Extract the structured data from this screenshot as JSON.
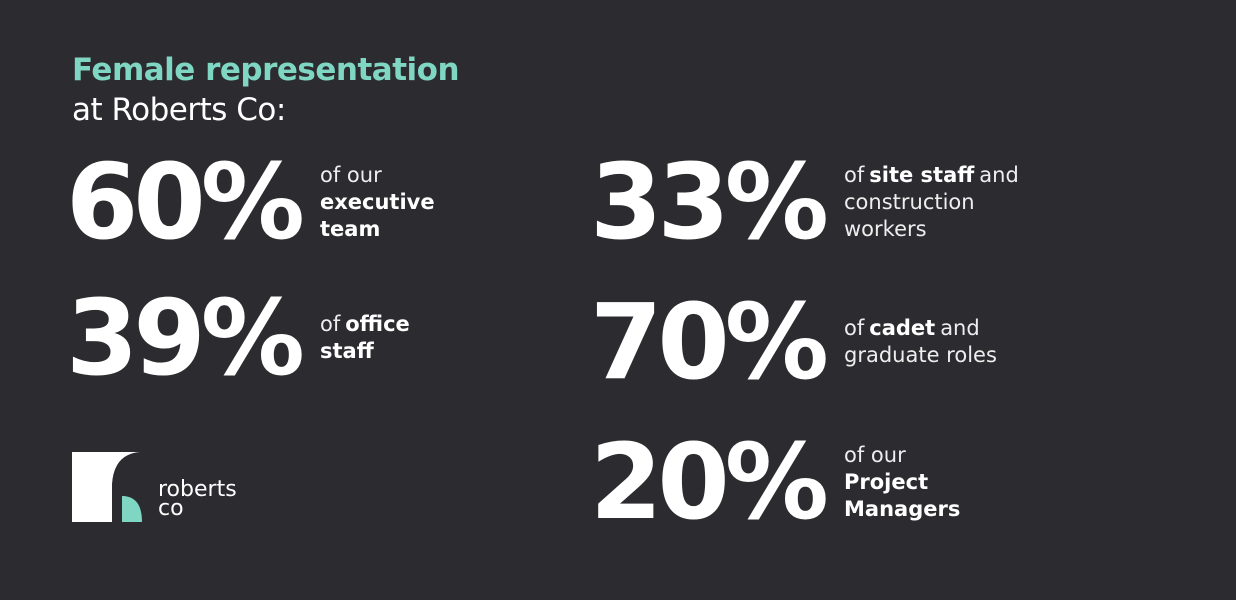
{
  "header": {
    "title": "Female representation",
    "subtitle": "at Roberts Co:"
  },
  "stats": [
    {
      "figure": "60%",
      "lines": [
        [
          {
            "text": "of our"
          }
        ],
        [
          {
            "text": "executive",
            "bold": true
          }
        ],
        [
          {
            "text": "team",
            "bold": true
          }
        ]
      ]
    },
    {
      "figure": "39%",
      "lines": [
        [
          {
            "text": "of"
          },
          {
            "text": "office",
            "bold": true
          }
        ],
        [
          {
            "text": "staff",
            "bold": true
          }
        ]
      ]
    },
    {
      "figure": "33%",
      "lines": [
        [
          {
            "text": "of"
          },
          {
            "text": "site staff",
            "bold": true
          },
          {
            "text": "and"
          }
        ],
        [
          {
            "text": "construction"
          }
        ],
        [
          {
            "text": "workers"
          }
        ]
      ]
    },
    {
      "figure": "70%",
      "lines": [
        [
          {
            "text": "of"
          },
          {
            "text": "cadet",
            "bold": true
          },
          {
            "text": "and"
          }
        ],
        [
          {
            "text": "graduate roles"
          }
        ]
      ]
    },
    {
      "figure": "20%",
      "lines": [
        [
          {
            "text": "of our"
          }
        ],
        [
          {
            "text": "Project",
            "bold": true
          }
        ],
        [
          {
            "text": "Managers",
            "bold": true
          }
        ]
      ]
    }
  ],
  "logo": {
    "line1": "roberts",
    "line2": "co"
  }
}
